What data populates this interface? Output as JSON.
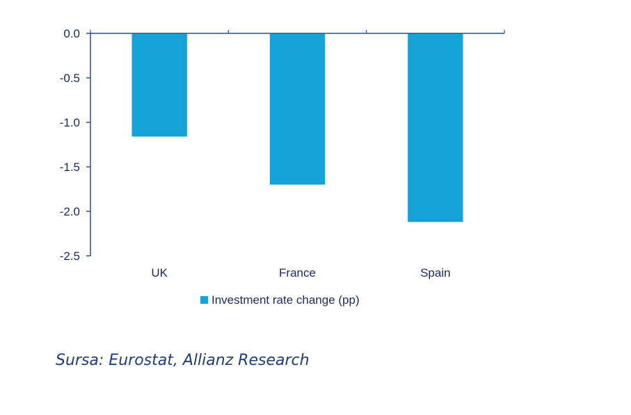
{
  "chart_data": {
    "type": "bar",
    "categories": [
      "UK",
      "France",
      "Spain"
    ],
    "series": [
      {
        "name": "Investment rate change (pp)",
        "values": [
          -1.16,
          -1.7,
          -2.12
        ],
        "color": "#16a2d6"
      }
    ],
    "ylim": [
      -2.5,
      0.0
    ],
    "yticks": [
      "0.0",
      "-0.5",
      "-1.0",
      "-1.5",
      "-2.0",
      "-2.5"
    ],
    "ytick_values": [
      0.0,
      -0.5,
      -1.0,
      -1.5,
      -2.0,
      -2.5
    ],
    "grid": false,
    "legend_position": "bottom",
    "axis_color": "#2f4d8f"
  },
  "source_note": "Sursa: Eurostat, Allianz Research"
}
